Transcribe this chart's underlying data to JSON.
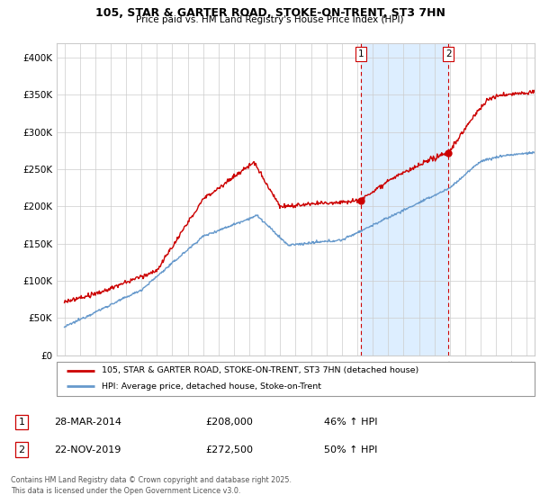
{
  "title": "105, STAR & GARTER ROAD, STOKE-ON-TRENT, ST3 7HN",
  "subtitle": "Price paid vs. HM Land Registry's House Price Index (HPI)",
  "legend_line1": "105, STAR & GARTER ROAD, STOKE-ON-TRENT, ST3 7HN (detached house)",
  "legend_line2": "HPI: Average price, detached house, Stoke-on-Trent",
  "annotation1_box": "1",
  "annotation1_date": "28-MAR-2014",
  "annotation1_price": "£208,000",
  "annotation1_change": "46% ↑ HPI",
  "annotation2_box": "2",
  "annotation2_date": "22-NOV-2019",
  "annotation2_price": "£272,500",
  "annotation2_change": "50% ↑ HPI",
  "footer": "Contains HM Land Registry data © Crown copyright and database right 2025.\nThis data is licensed under the Open Government Licence v3.0.",
  "vline1_x": 2014.24,
  "vline2_x": 2019.9,
  "red_color": "#cc0000",
  "blue_color": "#6699cc",
  "vline_color": "#cc0000",
  "highlight_color": "#ddeeff",
  "ylim": [
    0,
    420000
  ],
  "xlim": [
    1994.5,
    2025.5
  ],
  "yticks": [
    0,
    50000,
    100000,
    150000,
    200000,
    250000,
    300000,
    350000,
    400000
  ],
  "ytick_labels": [
    "£0",
    "£50K",
    "£100K",
    "£150K",
    "£200K",
    "£250K",
    "£300K",
    "£350K",
    "£400K"
  ],
  "xticks": [
    1995,
    1996,
    1997,
    1998,
    1999,
    2000,
    2001,
    2002,
    2003,
    2004,
    2005,
    2006,
    2007,
    2008,
    2009,
    2010,
    2011,
    2012,
    2013,
    2014,
    2015,
    2016,
    2017,
    2018,
    2019,
    2020,
    2021,
    2022,
    2023,
    2024,
    2025
  ]
}
